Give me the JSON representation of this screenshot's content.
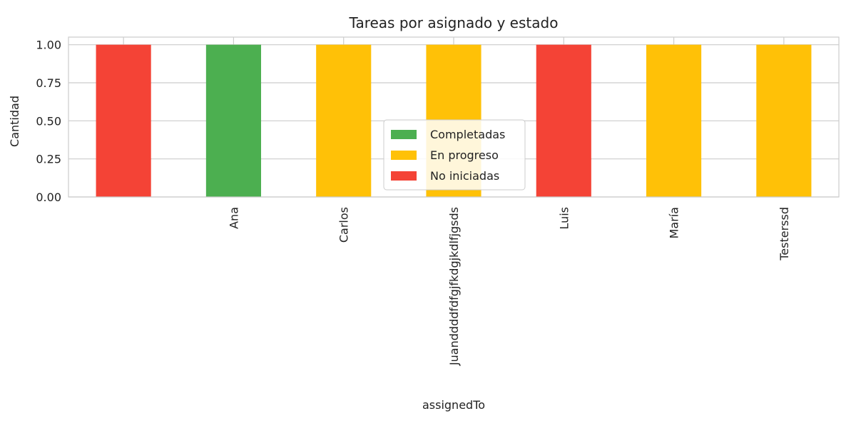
{
  "chart_data": {
    "type": "bar",
    "stacked": true,
    "title": "Tareas por asignado y estado",
    "xlabel": "assignedTo",
    "ylabel": "Cantidad",
    "categories": [
      "",
      "Ana",
      "Carlos",
      "Juanddddfdfgjfkdgjkdlfjgsds",
      "Luis",
      "María",
      "Testerssd"
    ],
    "series": [
      {
        "name": "Completadas",
        "color": "#4caf50",
        "values": [
          0,
          1,
          0,
          0,
          0,
          0,
          0
        ]
      },
      {
        "name": "En progreso",
        "color": "#ffc107",
        "values": [
          0,
          0,
          1,
          1,
          0,
          1,
          1
        ]
      },
      {
        "name": "No iniciadas",
        "color": "#f44336",
        "values": [
          1,
          0,
          0,
          0,
          1,
          0,
          0
        ]
      }
    ],
    "ylim": [
      0,
      1.05
    ],
    "yticks": [
      "0.00",
      "0.25",
      "0.50",
      "0.75",
      "1.00"
    ],
    "grid": true,
    "legend_position": "center"
  }
}
